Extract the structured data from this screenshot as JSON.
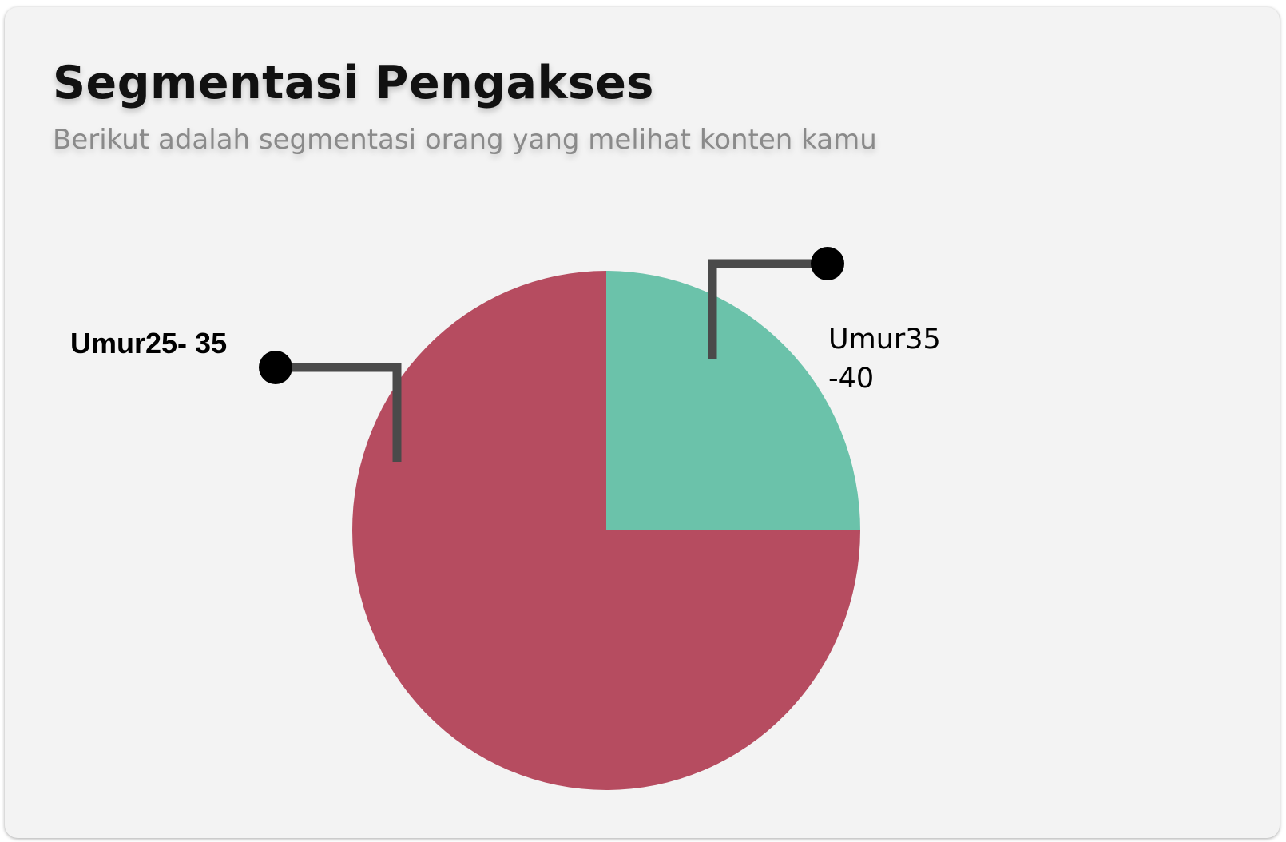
{
  "card": {
    "title": "Segmentasi Pengakses",
    "subtitle": "Berikut adalah segmentasi orang yang melihat konten kamu"
  },
  "chart_data": {
    "type": "pie",
    "title": "Segmentasi Pengakses",
    "subtitle": "Berikut adalah segmentasi orang yang melihat konten kamu",
    "slices": [
      {
        "label": "Umur25- 35",
        "label_lines": [
          "Umur25- 35"
        ],
        "value": 75,
        "color": "#b64c60"
      },
      {
        "label": "Umur35 -40",
        "label_lines": [
          "Umur35",
          "-40"
        ],
        "value": 25,
        "color": "#6bc2aa"
      }
    ],
    "legend": "none"
  }
}
